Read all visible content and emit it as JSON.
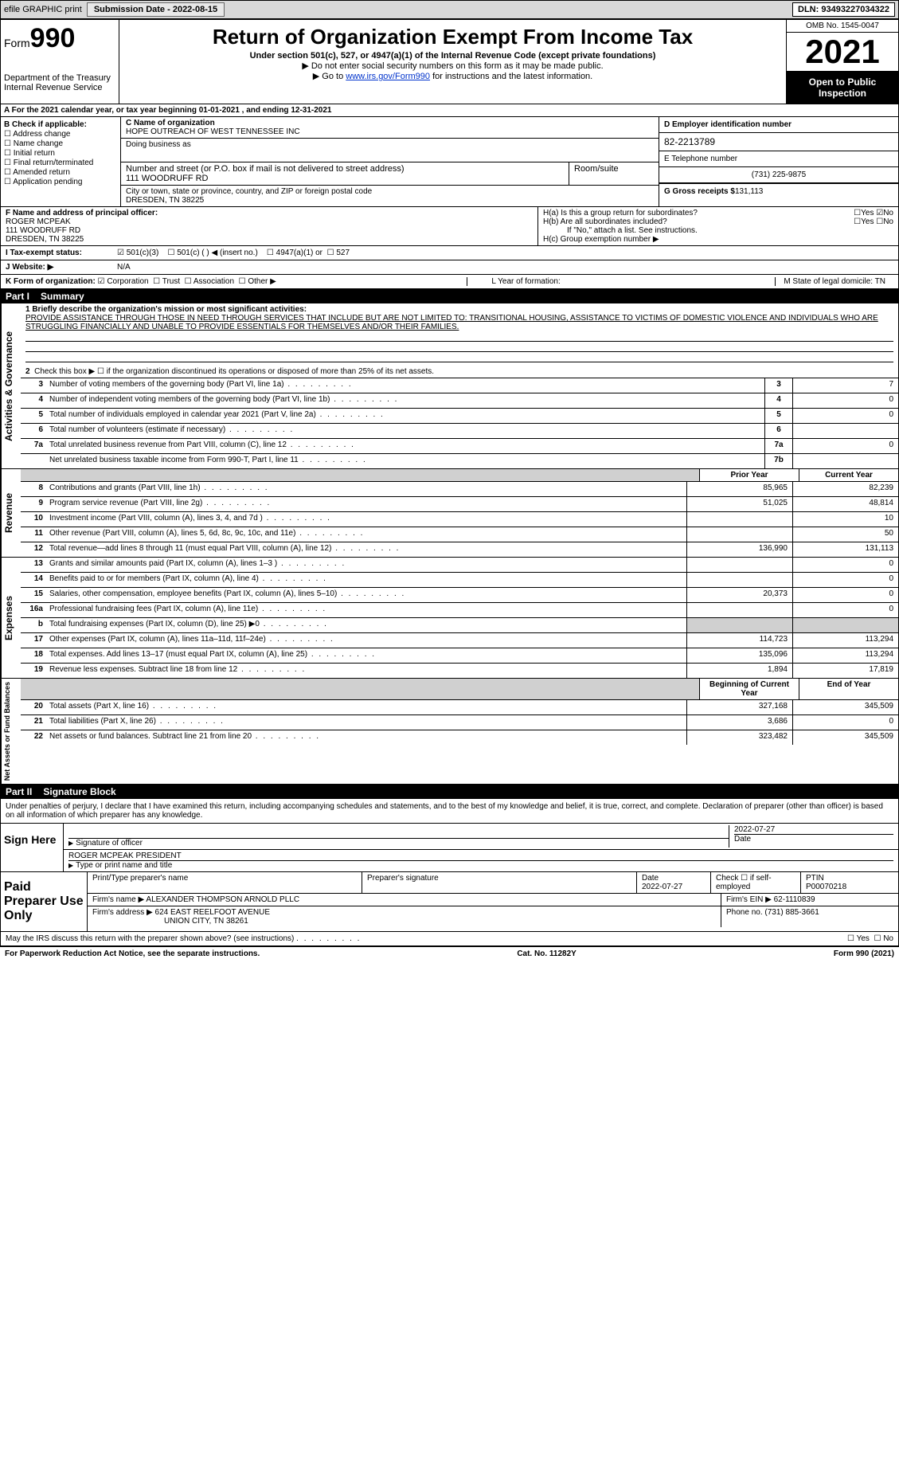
{
  "top_bar": {
    "efile_label": "efile GRAPHIC print",
    "submission_label": "Submission Date - 2022-08-15",
    "dln": "DLN: 93493227034322"
  },
  "header": {
    "form_label": "Form",
    "form_num": "990",
    "dept": "Department of the Treasury",
    "irs": "Internal Revenue Service",
    "title": "Return of Organization Exempt From Income Tax",
    "sub1": "Under section 501(c), 527, or 4947(a)(1) of the Internal Revenue Code (except private foundations)",
    "sub2": "▶ Do not enter social security numbers on this form as it may be made public.",
    "sub3_prefix": "▶ Go to ",
    "sub3_link": "www.irs.gov/Form990",
    "sub3_suffix": " for instructions and the latest information.",
    "omb": "OMB No. 1545-0047",
    "year": "2021",
    "open_pub": "Open to Public Inspection"
  },
  "row_a": "A For the 2021 calendar year, or tax year beginning 01-01-2021   , and ending 12-31-2021",
  "col_b": {
    "title": "B Check if applicable:",
    "opts": [
      "Address change",
      "Name change",
      "Initial return",
      "Final return/terminated",
      "Amended return",
      "Application pending"
    ]
  },
  "col_c": {
    "c_label": "C Name of organization",
    "org_name": "HOPE OUTREACH OF WEST TENNESSEE INC",
    "dba_label": "Doing business as",
    "addr_label": "Number and street (or P.O. box if mail is not delivered to street address)",
    "room_label": "Room/suite",
    "addr": "111 WOODRUFF RD",
    "city_label": "City or town, state or province, country, and ZIP or foreign postal code",
    "city": "DRESDEN, TN  38225"
  },
  "col_de": {
    "d_label": "D Employer identification number",
    "ein": "82-2213789",
    "e_label": "E Telephone number",
    "phone": "(731) 225-9875",
    "g_label": "G Gross receipts $",
    "g_val": "131,113"
  },
  "row_f": {
    "f_label": "F  Name and address of principal officer:",
    "name": "ROGER MCPEAK",
    "addr1": "111 WOODRUFF RD",
    "addr2": "DRESDEN, TN  38225"
  },
  "row_h": {
    "ha": "H(a)  Is this a group return for subordinates?",
    "hb": "H(b)  Are all subordinates included?",
    "hb_note": "If \"No,\" attach a list. See instructions.",
    "hc": "H(c)  Group exemption number ▶",
    "yes": "Yes",
    "no": "No"
  },
  "row_i": {
    "label": "I  Tax-exempt status:",
    "o1": "501(c)(3)",
    "o2": "501(c) (  ) ◀ (insert no.)",
    "o3": "4947(a)(1) or",
    "o4": "527"
  },
  "row_j": {
    "label": "J  Website: ▶",
    "val": "N/A"
  },
  "row_k": {
    "label": "K Form of organization:",
    "o1": "Corporation",
    "o2": "Trust",
    "o3": "Association",
    "o4": "Other ▶"
  },
  "row_lm": {
    "l": "L Year of formation:",
    "m": "M State of legal domicile: TN"
  },
  "part1": {
    "num": "Part I",
    "title": "Summary"
  },
  "summary": {
    "line1_label": "1  Briefly describe the organization's mission or most significant activities:",
    "line1_text": "PROVIDE ASSISTANCE THROUGH THOSE IN NEED THROUGH SERVICES THAT INCLUDE BUT ARE NOT LIMITED TO: TRANSITIONAL HOUSING, ASSISTANCE TO VICTIMS OF DOMESTIC VIOLENCE AND INDIVIDUALS WHO ARE STRUGGLING FINANCIALLY AND UNABLE TO PROVIDE ESSENTIALS FOR THEMSELVES AND/OR THEIR FAMILIES.",
    "line2": "Check this box ▶ ☐  if the organization discontinued its operations or disposed of more than 25% of its net assets.",
    "vert_labels": {
      "gov": "Activities & Governance",
      "rev": "Revenue",
      "exp": "Expenses",
      "net": "Net Assets or Fund Balances"
    },
    "gov_rows": [
      {
        "n": "3",
        "d": "Number of voting members of the governing body (Part VI, line 1a)",
        "box": "3",
        "v": "7"
      },
      {
        "n": "4",
        "d": "Number of independent voting members of the governing body (Part VI, line 1b)",
        "box": "4",
        "v": "0"
      },
      {
        "n": "5",
        "d": "Total number of individuals employed in calendar year 2021 (Part V, line 2a)",
        "box": "5",
        "v": "0"
      },
      {
        "n": "6",
        "d": "Total number of volunteers (estimate if necessary)",
        "box": "6",
        "v": ""
      },
      {
        "n": "7a",
        "d": "Total unrelated business revenue from Part VIII, column (C), line 12",
        "box": "7a",
        "v": "0"
      },
      {
        "n": "",
        "d": "Net unrelated business taxable income from Form 990-T, Part I, line 11",
        "box": "7b",
        "v": ""
      }
    ],
    "col_headers": {
      "prior": "Prior Year",
      "current": "Current Year",
      "begin": "Beginning of Current Year",
      "end": "End of Year"
    },
    "rev_rows": [
      {
        "n": "8",
        "d": "Contributions and grants (Part VIII, line 1h)",
        "p": "85,965",
        "c": "82,239"
      },
      {
        "n": "9",
        "d": "Program service revenue (Part VIII, line 2g)",
        "p": "51,025",
        "c": "48,814"
      },
      {
        "n": "10",
        "d": "Investment income (Part VIII, column (A), lines 3, 4, and 7d )",
        "p": "",
        "c": "10"
      },
      {
        "n": "11",
        "d": "Other revenue (Part VIII, column (A), lines 5, 6d, 8c, 9c, 10c, and 11e)",
        "p": "",
        "c": "50"
      },
      {
        "n": "12",
        "d": "Total revenue—add lines 8 through 11 (must equal Part VIII, column (A), line 12)",
        "p": "136,990",
        "c": "131,113"
      }
    ],
    "exp_rows": [
      {
        "n": "13",
        "d": "Grants and similar amounts paid (Part IX, column (A), lines 1–3 )",
        "p": "",
        "c": "0"
      },
      {
        "n": "14",
        "d": "Benefits paid to or for members (Part IX, column (A), line 4)",
        "p": "",
        "c": "0"
      },
      {
        "n": "15",
        "d": "Salaries, other compensation, employee benefits (Part IX, column (A), lines 5–10)",
        "p": "20,373",
        "c": "0"
      },
      {
        "n": "16a",
        "d": "Professional fundraising fees (Part IX, column (A), line 11e)",
        "p": "",
        "c": "0"
      },
      {
        "n": "b",
        "d": "Total fundraising expenses (Part IX, column (D), line 25) ▶0",
        "p": "",
        "c": "",
        "grey": true
      },
      {
        "n": "17",
        "d": "Other expenses (Part IX, column (A), lines 11a–11d, 11f–24e)",
        "p": "114,723",
        "c": "113,294"
      },
      {
        "n": "18",
        "d": "Total expenses. Add lines 13–17 (must equal Part IX, column (A), line 25)",
        "p": "135,096",
        "c": "113,294"
      },
      {
        "n": "19",
        "d": "Revenue less expenses. Subtract line 18 from line 12",
        "p": "1,894",
        "c": "17,819"
      }
    ],
    "net_rows": [
      {
        "n": "20",
        "d": "Total assets (Part X, line 16)",
        "p": "327,168",
        "c": "345,509"
      },
      {
        "n": "21",
        "d": "Total liabilities (Part X, line 26)",
        "p": "3,686",
        "c": "0"
      },
      {
        "n": "22",
        "d": "Net assets or fund balances. Subtract line 21 from line 20",
        "p": "323,482",
        "c": "345,509"
      }
    ]
  },
  "part2": {
    "num": "Part II",
    "title": "Signature Block",
    "decl": "Under penalties of perjury, I declare that I have examined this return, including accompanying schedules and statements, and to the best of my knowledge and belief, it is true, correct, and complete. Declaration of preparer (other than officer) is based on all information of which preparer has any knowledge."
  },
  "sign": {
    "left": "Sign Here",
    "sig_of_officer": "Signature of officer",
    "date_label": "Date",
    "date": "2022-07-27",
    "name": "ROGER MCPEAK  PRESIDENT",
    "type_label": "Type or print name and title"
  },
  "prep": {
    "left": "Paid Preparer Use Only",
    "h1": "Print/Type preparer's name",
    "h2": "Preparer's signature",
    "h3": "Date",
    "date": "2022-07-27",
    "h4": "Check ☐ if self-employed",
    "h5": "PTIN",
    "ptin": "P00070218",
    "firm_name_label": "Firm's name    ▶",
    "firm_name": "ALEXANDER THOMPSON ARNOLD PLLC",
    "firm_ein_label": "Firm's EIN ▶",
    "firm_ein": "62-1110839",
    "firm_addr_label": "Firm's address ▶",
    "firm_addr1": "624 EAST REELFOOT AVENUE",
    "firm_addr2": "UNION CITY, TN  38261",
    "phone_label": "Phone no.",
    "phone": "(731) 885-3661"
  },
  "discuss": {
    "text": "May the IRS discuss this return with the preparer shown above? (see instructions)",
    "yes": "Yes",
    "no": "No"
  },
  "footer": {
    "left": "For Paperwork Reduction Act Notice, see the separate instructions.",
    "mid": "Cat. No. 11282Y",
    "right_prefix": "Form ",
    "right_form": "990",
    "right_suffix": " (2021)"
  }
}
